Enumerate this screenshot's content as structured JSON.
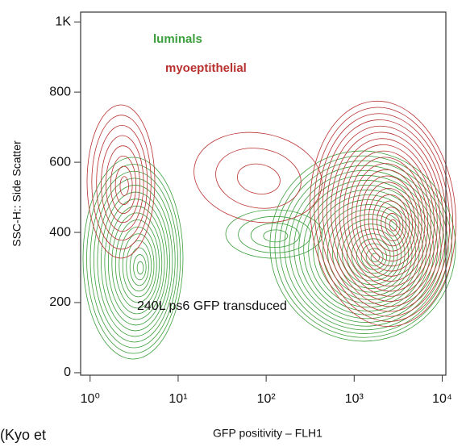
{
  "chart_data": {
    "type": "contour",
    "x_label": "GFP positivity – FLH1",
    "y_label": "SSC-H:: Side Scatter",
    "annotation": "240L ps6 GFP transduced",
    "caption": "(Kyo et",
    "groups": [
      {
        "name": "luminals",
        "color": "#3a9e3a"
      },
      {
        "name": "myoeptithelial",
        "color": "#b8312f"
      }
    ],
    "xscale": "log",
    "xlim": [
      0.78,
      11000
    ],
    "xticks": [
      {
        "value": 1,
        "label": "10⁰"
      },
      {
        "value": 10,
        "label": "10¹"
      },
      {
        "value": 100,
        "label": "10²"
      },
      {
        "value": 1000,
        "label": "10³"
      },
      {
        "value": 10000,
        "label": "10⁴"
      }
    ],
    "ylim": [
      -7,
      1028
    ],
    "yticks": [
      0,
      200,
      400,
      600,
      800,
      {
        "value": 1000,
        "label": "1K"
      }
    ]
  }
}
